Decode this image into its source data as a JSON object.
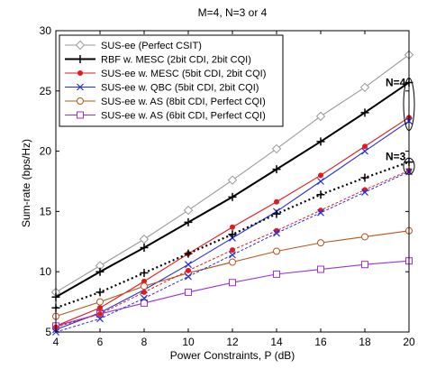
{
  "chart_data": {
    "type": "line",
    "title": "M=4, N=3 or 4",
    "xlabel": "Power Constraints, P (dB)",
    "ylabel": "Sum-rate (bps/Hz)",
    "xlim": [
      4,
      20
    ],
    "ylim": [
      5,
      30
    ],
    "xticks": [
      4,
      6,
      8,
      10,
      12,
      14,
      16,
      18,
      20
    ],
    "yticks": [
      5,
      10,
      15,
      20,
      25,
      30
    ],
    "legend_position": "top-left",
    "x": [
      4,
      6,
      8,
      10,
      12,
      14,
      16,
      18,
      20
    ],
    "series": [
      {
        "name": "SUS-ee (Perfect CSIT)",
        "color": "#999999",
        "marker": "diamond",
        "values": [
          8.3,
          10.5,
          12.7,
          15.1,
          17.6,
          20.2,
          22.9,
          25.3,
          28.0
        ]
      },
      {
        "name": "RBF w. MESC (2bit CDI, 2bit CQI)",
        "color": "#000000",
        "marker": "plus",
        "values": [
          7.9,
          10.0,
          12.0,
          14.1,
          16.2,
          18.5,
          20.8,
          23.2,
          25.7
        ]
      },
      {
        "name": "SUS-ee w. MESC (5bit CDI, 2bit CQI)",
        "color": "#e31a1c",
        "marker": "dot",
        "values": [
          5.5,
          7.0,
          9.2,
          11.5,
          13.7,
          15.8,
          18.0,
          20.4,
          22.8
        ]
      },
      {
        "name": "SUS-ee w. QBC (5bit CDI, 2bit CQI)",
        "color": "#1f2fe0",
        "marker": "x",
        "values": [
          5.2,
          6.6,
          8.5,
          10.6,
          12.8,
          15.0,
          17.5,
          20.0,
          22.5
        ]
      },
      {
        "name": "SUS-ee w. AS (8bit CDI, Perfect CQI)",
        "color": "#b5541b",
        "marker": "circle",
        "values": [
          6.3,
          7.5,
          8.8,
          9.9,
          10.8,
          11.7,
          12.4,
          12.9,
          13.4
        ]
      },
      {
        "name": "SUS-ee w. AS (6bit CDI, Perfect CQI)",
        "color": "#9b30d9",
        "marker": "square",
        "values": [
          5.5,
          6.5,
          7.4,
          8.3,
          9.1,
          9.8,
          10.2,
          10.6,
          10.9
        ]
      },
      {
        "name": "",
        "color": "#000000",
        "marker": "plus",
        "dashed": true,
        "values": [
          7.0,
          8.3,
          9.9,
          11.5,
          13.1,
          14.8,
          16.4,
          17.8,
          19.1
        ]
      },
      {
        "name": "",
        "color": "#e31a1c",
        "marker": "dot",
        "dashed": true,
        "values": [
          5.4,
          6.5,
          8.3,
          10.1,
          11.8,
          13.4,
          15.1,
          16.8,
          18.4
        ]
      },
      {
        "name": "",
        "color": "#1f2fe0",
        "marker": "x",
        "dashed": true,
        "values": [
          5.0,
          6.1,
          7.8,
          9.6,
          11.4,
          13.2,
          14.9,
          16.6,
          18.3
        ]
      }
    ],
    "annotations": [
      {
        "text": "N=4",
        "x": 20,
        "y": 25.7
      },
      {
        "text": "N=3",
        "x": 20,
        "y": 18.9
      }
    ]
  }
}
